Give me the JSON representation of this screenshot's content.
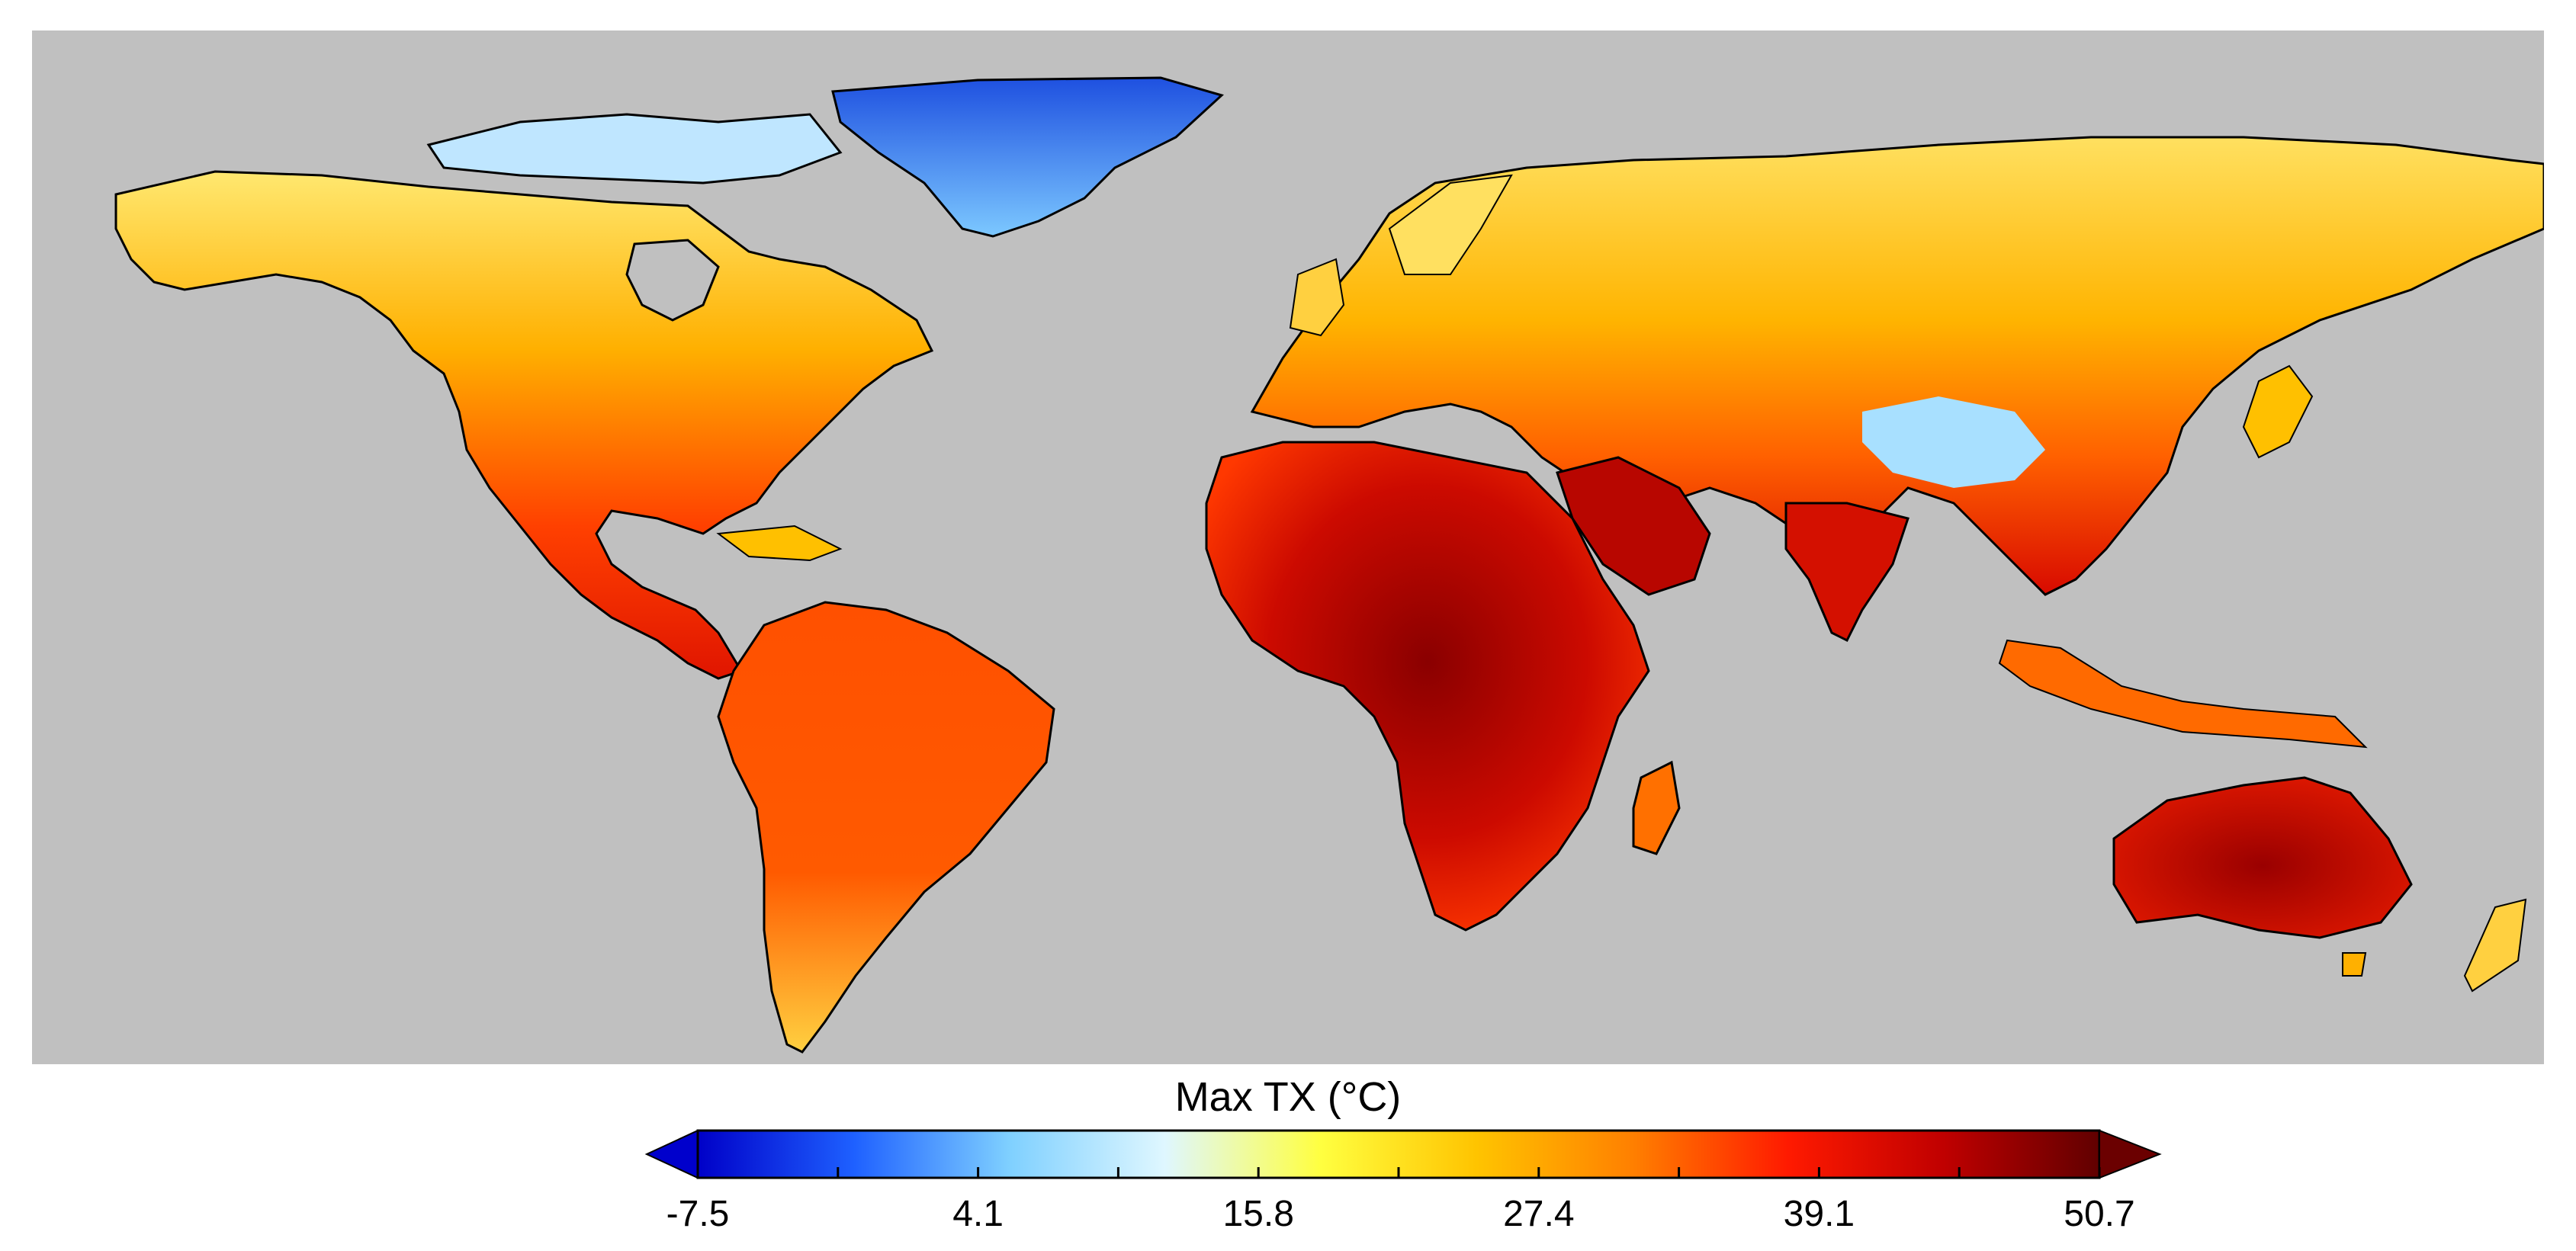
{
  "map": {
    "variable": "Max TX",
    "unit": "°C",
    "background_color": "#c0c0c0",
    "land_outline_color": "#000000"
  },
  "legend": {
    "title": "Max TX (°C)",
    "min": -7.5,
    "max": 50.7,
    "tick_labels": [
      "-7.5",
      "4.1",
      "15.8",
      "27.4",
      "39.1",
      "50.7"
    ],
    "extend": "both",
    "colors": {
      "underflow": "#0000cc",
      "overflow": "#6b0000",
      "ramp": [
        "#0000c8",
        "#1e60ff",
        "#7fd0ff",
        "#dff7ff",
        "#ffff40",
        "#ffc400",
        "#ff8000",
        "#ff1a00",
        "#c00000",
        "#600000"
      ]
    }
  },
  "regions": [
    {
      "name": "Greenland",
      "color": "#3a7cf0"
    },
    {
      "name": "North America",
      "color": "#ff9a10"
    },
    {
      "name": "South America",
      "color": "#ff5a00"
    },
    {
      "name": "Europe",
      "color": "#ffb000"
    },
    {
      "name": "Asia",
      "color": "#ffc200"
    },
    {
      "name": "Africa",
      "color": "#e01800"
    },
    {
      "name": "Australia",
      "color": "#d01000"
    }
  ]
}
